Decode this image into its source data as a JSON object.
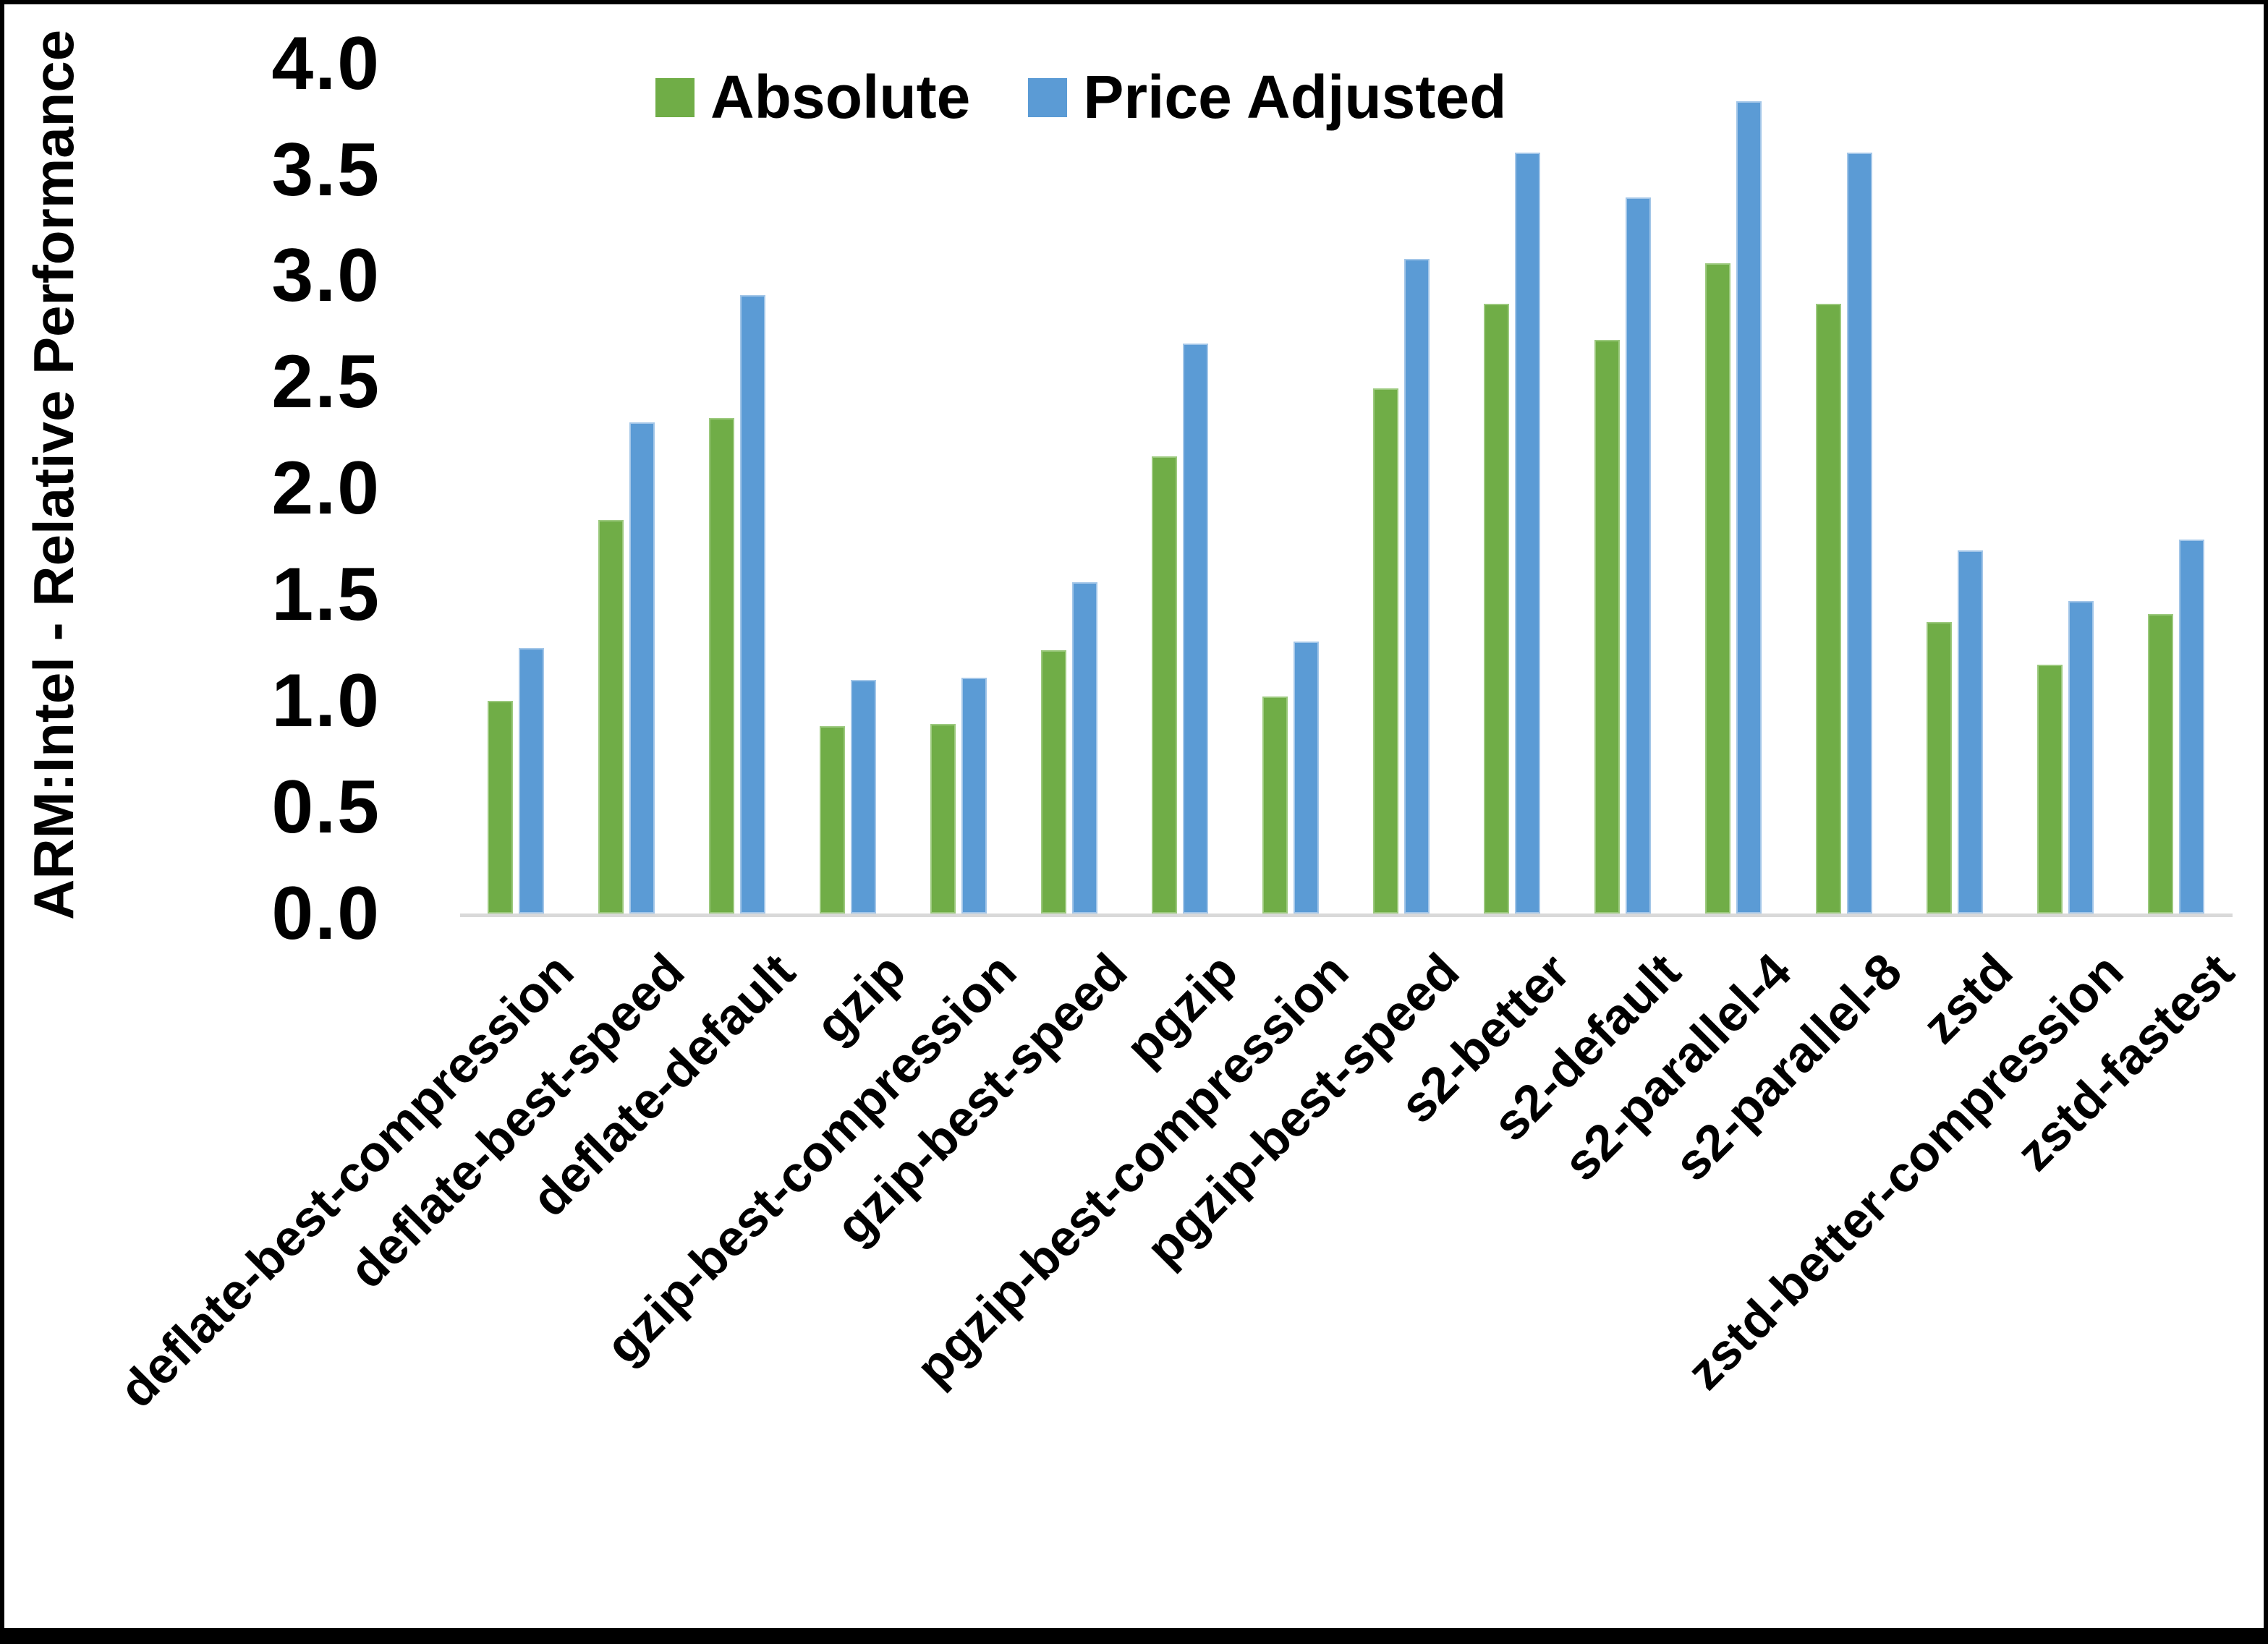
{
  "window": {
    "background": "#FFFFFF",
    "frame_color": "#000000"
  },
  "chart_data": {
    "type": "bar",
    "title": "",
    "ylabel": "ARM:Intel - Relative Performance",
    "xlabel": "",
    "ylim": [
      0.0,
      4.0
    ],
    "ytick_step": 0.5,
    "ytick_labels": [
      "4.0",
      "3.5",
      "3.0",
      "2.5",
      "2.0",
      "1.5",
      "1.0",
      "0.5",
      "0.0"
    ],
    "grid": false,
    "axis_line_color": "#D9D9D9",
    "legend": {
      "position": "top-center",
      "entries": [
        "Absolute",
        "Price Adjusted"
      ]
    },
    "categories": [
      "deflate-best-compression",
      "deflate-best-speed",
      "deflate-default",
      "gzip",
      "gzip-best-compression",
      "gzip-best-speed",
      "pgzip",
      "pgzip-best-compression",
      "pgzip-best-speed",
      "s2-better",
      "s2-default",
      "s2-parallel-4",
      "s2-parallel-8",
      "zstd",
      "zstd-better-compression",
      "zstd-fastest"
    ],
    "series": [
      {
        "name": "Absolute",
        "color": "#70AD47",
        "edge_color": "#9CC97E",
        "values": [
          1.0,
          1.85,
          2.33,
          0.88,
          0.89,
          1.24,
          2.15,
          1.02,
          2.47,
          2.87,
          2.7,
          3.06,
          2.87,
          1.37,
          1.17,
          1.41
        ]
      },
      {
        "name": "Price Adjusted",
        "color": "#5B9BD5",
        "edge_color": "#A3C6E8",
        "values": [
          1.25,
          2.31,
          2.91,
          1.1,
          1.11,
          1.56,
          2.68,
          1.28,
          3.08,
          3.58,
          3.37,
          3.82,
          3.58,
          1.71,
          1.47,
          1.76
        ]
      }
    ]
  }
}
